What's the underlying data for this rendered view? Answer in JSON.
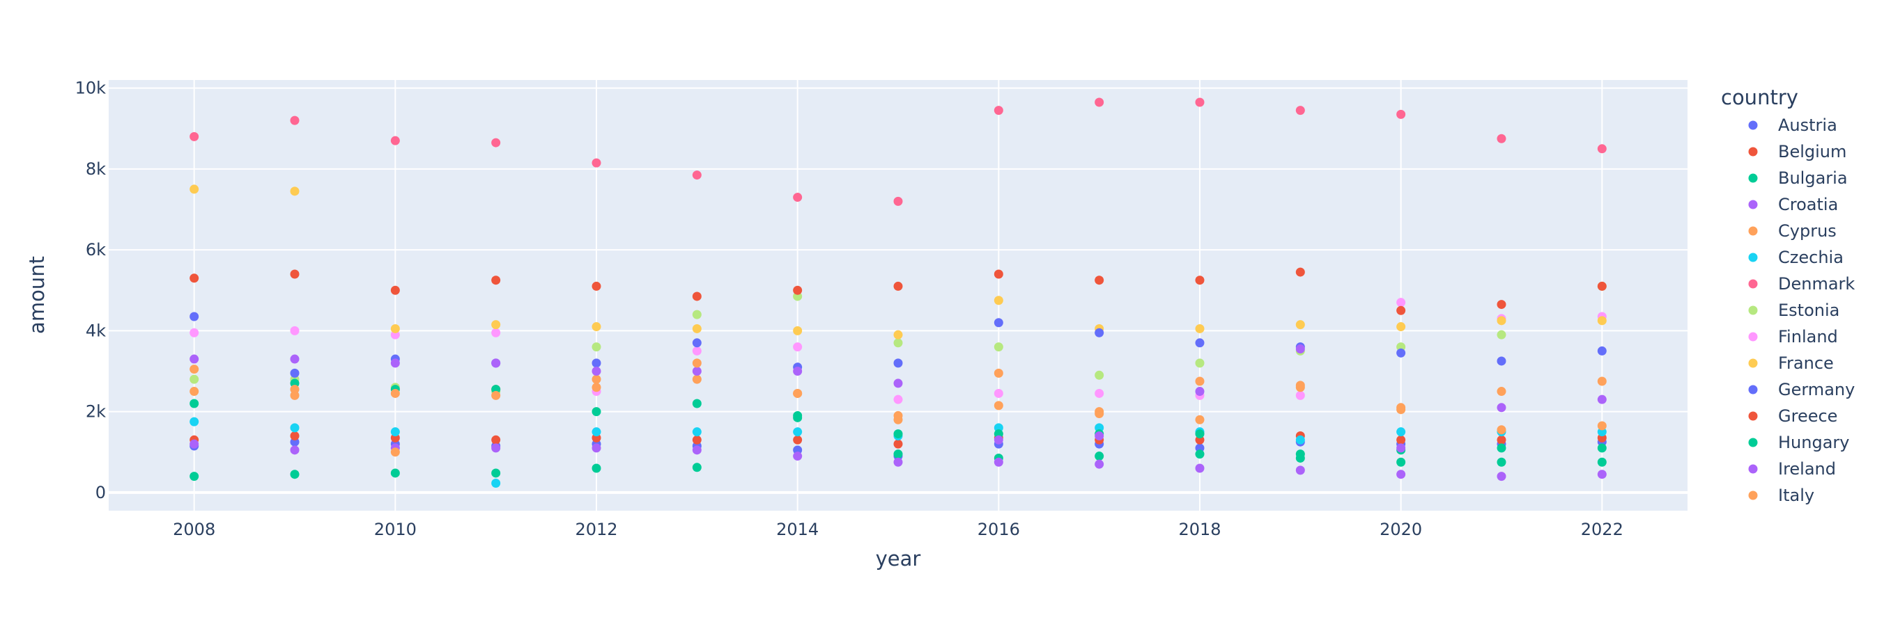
{
  "chart_data": {
    "type": "scatter",
    "xlabel": "year",
    "ylabel": "amount",
    "xlim": [
      2007.15,
      2022.85
    ],
    "ylim": [
      -450,
      10200
    ],
    "x_ticks": [
      2008,
      2010,
      2012,
      2014,
      2016,
      2018,
      2020,
      2022
    ],
    "x_tick_labels": [
      "2008",
      "2010",
      "2012",
      "2014",
      "2016",
      "2018",
      "2020",
      "2022"
    ],
    "y_ticks": [
      0,
      2000,
      4000,
      6000,
      8000,
      10000
    ],
    "y_tick_labels": [
      "0",
      "2k",
      "4k",
      "6k",
      "8k",
      "10k"
    ],
    "grid": true,
    "legend_title": "country",
    "legend_position": "right",
    "x": [
      2008,
      2009,
      2010,
      2011,
      2012,
      2013,
      2014,
      2015,
      2016,
      2017,
      2018,
      2019,
      2020,
      2021,
      2022
    ],
    "series": [
      {
        "name": "Austria",
        "color": "#636efa",
        "values": [
          1150,
          1250,
          1200,
          1150,
          1200,
          1150,
          1050,
          900,
          1200,
          1200,
          1100,
          1250,
          1200,
          1200,
          1250
        ]
      },
      {
        "name": "Belgium",
        "color": "#EF553B",
        "values": [
          1300,
          1400,
          1350,
          1300,
          1350,
          1300,
          1300,
          1200,
          1350,
          1300,
          1300,
          1400,
          1300,
          1300,
          1350
        ]
      },
      {
        "name": "Bulgaria",
        "color": "#00cc96",
        "values": [
          400,
          450,
          480,
          480,
          600,
          620,
          1850,
          950,
          850,
          900,
          950,
          850,
          750,
          750,
          750
        ]
      },
      {
        "name": "Croatia",
        "color": "#ab63fa",
        "values": [
          1200,
          1050,
          1100,
          1100,
          1100,
          1050,
          900,
          750,
          750,
          700,
          600,
          550,
          450,
          400,
          450
        ]
      },
      {
        "name": "Cyprus",
        "color": "#FFA15A",
        "values": [
          2500,
          2400,
          1000,
          2550,
          2800,
          2800,
          2450,
          1900,
          2950,
          2000,
          2750,
          2650,
          2100,
          2500,
          2750
        ]
      },
      {
        "name": "Czechia",
        "color": "#19d3f3",
        "values": [
          1750,
          1600,
          1500,
          230,
          1500,
          1500,
          1500,
          1400,
          1600,
          1600,
          1500,
          1300,
          1500,
          1500,
          1500
        ]
      },
      {
        "name": "Denmark",
        "color": "#FF6692",
        "values": [
          8800,
          9200,
          8700,
          8650,
          8150,
          7850,
          7300,
          7200,
          9450,
          9650,
          9650,
          9450,
          9350,
          8750,
          8500
        ]
      },
      {
        "name": "Estonia",
        "color": "#B6E880",
        "values": [
          2800,
          2800,
          2600,
          2500,
          3600,
          4400,
          4850,
          3700,
          3600,
          2900,
          3200,
          3500,
          3600,
          3900,
          5100
        ]
      },
      {
        "name": "Finland",
        "color": "#FF97FF",
        "values": [
          3950,
          4000,
          3900,
          3950,
          2500,
          3500,
          3600,
          2300,
          2450,
          2450,
          2400,
          2400,
          4700,
          4300,
          4350
        ]
      },
      {
        "name": "France",
        "color": "#FECB52",
        "values": [
          7500,
          7450,
          4050,
          4150,
          4100,
          4050,
          4000,
          3900,
          4750,
          4050,
          4050,
          4150,
          4100,
          4250,
          4250
        ]
      },
      {
        "name": "Germany",
        "color": "#636efa",
        "values": [
          4350,
          2950,
          3300,
          3200,
          3200,
          3700,
          3100,
          3200,
          4200,
          3950,
          3700,
          3600,
          3450,
          3250,
          3500
        ]
      },
      {
        "name": "Greece",
        "color": "#EF553B",
        "values": [
          5300,
          5400,
          5000,
          5250,
          5100,
          4850,
          5000,
          5100,
          5400,
          5250,
          5250,
          5450,
          4500,
          4650,
          5100
        ]
      },
      {
        "name": "Hungary",
        "color": "#00cc96",
        "values": [
          2200,
          2700,
          2550,
          2550,
          2000,
          2200,
          1900,
          1450,
          1450,
          1450,
          1450,
          950,
          1050,
          1100,
          1100
        ]
      },
      {
        "name": "Ireland",
        "color": "#ab63fa",
        "values": [
          3300,
          3300,
          3200,
          3200,
          3000,
          3000,
          3000,
          2700,
          1300,
          1400,
          2500,
          3550,
          1100,
          2100,
          2300
        ]
      },
      {
        "name": "Italy",
        "color": "#FFA15A",
        "values": [
          3050,
          2550,
          2450,
          2400,
          2600,
          3200,
          2450,
          1800,
          2150,
          1950,
          1800,
          2600,
          2050,
          1550,
          1650
        ]
      }
    ]
  }
}
